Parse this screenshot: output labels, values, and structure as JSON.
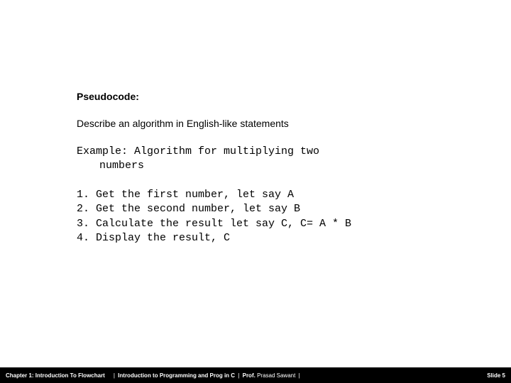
{
  "heading": "Pseudocode:",
  "subheading": "Describe an algorithm in English-like statements",
  "example_line1": "Example: Algorithm for multiplying two",
  "example_line2": "numbers",
  "steps": {
    "s1": "1. Get the first number, let say A",
    "s2": "2. Get the second number, let say B",
    "s3": "3. Calculate the result let say C, C= A * B",
    "s4": "4. Display the result, C"
  },
  "footer": {
    "chapter": "Chapter 1: Introduction To Flowchart",
    "course": "Introduction to Programming and Prog in C",
    "prof_label": "Prof.",
    "prof_name": "Prasad Sawant",
    "slide_label": "Slide 5"
  },
  "colors": {
    "background": "#ffffff",
    "text": "#000000",
    "footer_bg": "#000000",
    "footer_text": "#ffffff"
  }
}
